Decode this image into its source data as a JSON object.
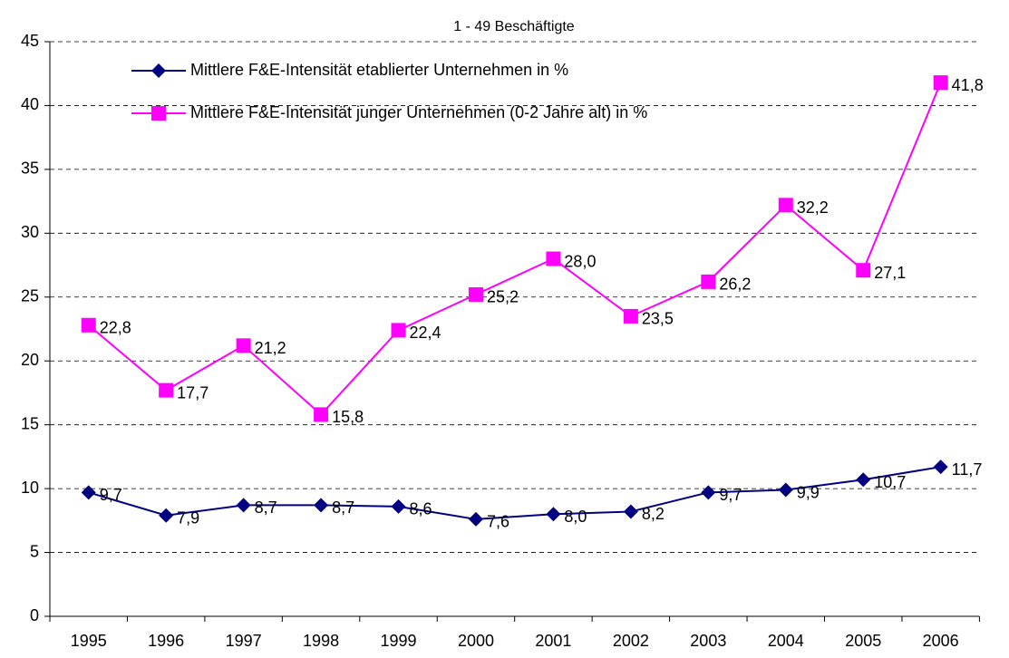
{
  "chart_data": {
    "type": "line",
    "title": "1 - 49 Beschäftigte",
    "categories": [
      "1995",
      "1996",
      "1997",
      "1998",
      "1999",
      "2000",
      "2001",
      "2002",
      "2003",
      "2004",
      "2005",
      "2006"
    ],
    "series": [
      {
        "name": "Mittlere F&E-Intensität etablierter Unternehmen in %",
        "color": "#000080",
        "marker": "diamond",
        "values": [
          9.7,
          7.9,
          8.7,
          8.7,
          8.6,
          7.6,
          8.0,
          8.2,
          9.7,
          9.9,
          10.7,
          11.7
        ],
        "value_labels": [
          "9,7",
          "7,9",
          "8,7",
          "8,7",
          "8,6",
          "7,6",
          "8,0",
          "8,2",
          "9,7",
          "9,9",
          "10,7",
          "11,7"
        ]
      },
      {
        "name": "Mittlere F&E-Intensität junger Unternehmen (0-2 Jahre alt) in %",
        "color": "#ff00ff",
        "marker": "square",
        "values": [
          22.8,
          17.7,
          21.2,
          15.8,
          22.4,
          25.2,
          28.0,
          23.5,
          26.2,
          32.2,
          27.1,
          41.8
        ],
        "value_labels": [
          "22,8",
          "17,7",
          "21,2",
          "15,8",
          "22,4",
          "25,2",
          "28,0",
          "23,5",
          "26,2",
          "32,2",
          "27,1",
          "41,8"
        ]
      }
    ],
    "ylim": [
      0,
      45
    ],
    "yticks": [
      0,
      5,
      10,
      15,
      20,
      25,
      30,
      35,
      40,
      45
    ],
    "grid": true
  }
}
